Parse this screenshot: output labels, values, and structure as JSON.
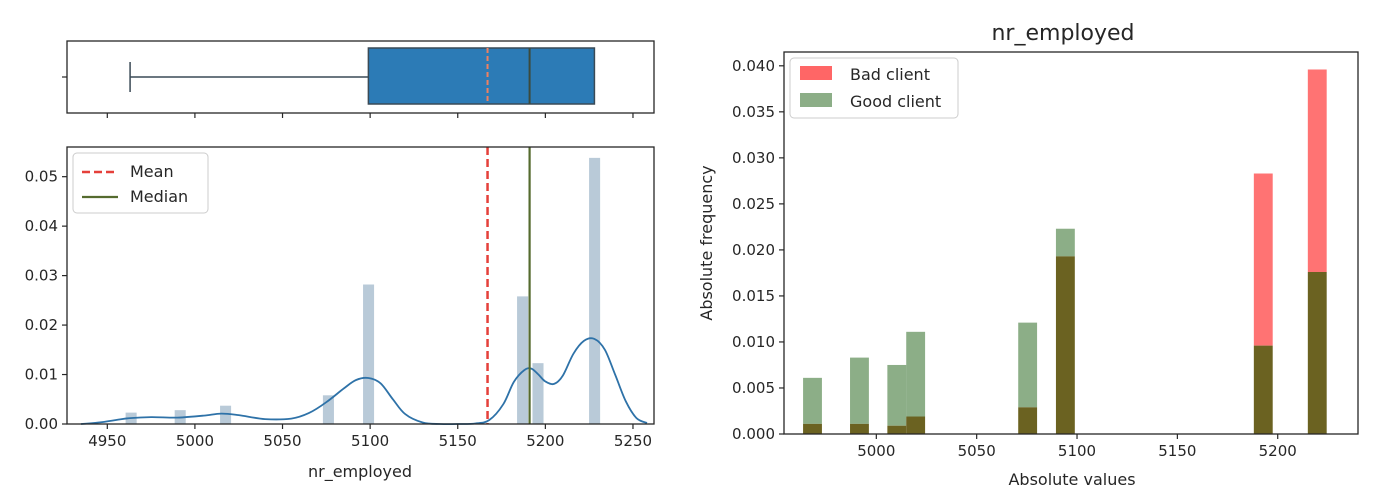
{
  "chart_data": [
    {
      "type": "box",
      "panel": "left-top",
      "min": 4963,
      "q1": 5099,
      "median": 5191,
      "mean": 5167,
      "q3": 5228,
      "max": 5228,
      "xlim": [
        4927,
        5262
      ],
      "colors": {
        "box": "#2c7bb6",
        "edge": "#3a4a56",
        "mean": "#f08060",
        "median": "#3c4a3c"
      }
    },
    {
      "type": "bar",
      "panel": "left-bottom",
      "xlabel": "nr_employed",
      "ylabel": "",
      "xlim": [
        4927,
        5262
      ],
      "ylim": [
        0,
        0.056
      ],
      "xticks": [
        "4950",
        "5000",
        "5050",
        "5100",
        "5150",
        "5200",
        "5250"
      ],
      "yticks": [
        "0.00",
        "0.01",
        "0.02",
        "0.03",
        "0.04",
        "0.05"
      ],
      "bar_width": 6.3,
      "bars": [
        {
          "x": 4963.6,
          "y": 0.0023
        },
        {
          "x": 4991.6,
          "y": 0.0028
        },
        {
          "x": 5017.5,
          "y": 0.0037
        },
        {
          "x": 5076.2,
          "y": 0.0058
        },
        {
          "x": 5099.1,
          "y": 0.0282
        },
        {
          "x": 5187.0,
          "y": 0.0258
        },
        {
          "x": 5195.8,
          "y": 0.0123
        },
        {
          "x": 5228.1,
          "y": 0.0538
        }
      ],
      "kde": {
        "x": [
          4935,
          4945,
          4955,
          4963,
          4975,
          4990,
          5005,
          5015,
          5025,
          5040,
          5055,
          5065,
          5075,
          5085,
          5092,
          5099,
          5106,
          5113,
          5120,
          5130,
          5140,
          5150,
          5160,
          5168,
          5176,
          5182,
          5188,
          5192,
          5196,
          5200,
          5205,
          5210,
          5216,
          5222,
          5228,
          5234,
          5240,
          5246,
          5252,
          5258
        ],
        "y": [
          0.0,
          0.0003,
          0.0008,
          0.0012,
          0.0014,
          0.0013,
          0.0017,
          0.0021,
          0.0018,
          0.001,
          0.0011,
          0.0022,
          0.0044,
          0.0072,
          0.0089,
          0.0093,
          0.0082,
          0.005,
          0.002,
          0.0003,
          0.0,
          0.0,
          0.0001,
          0.0008,
          0.004,
          0.0085,
          0.0109,
          0.0112,
          0.01,
          0.0086,
          0.0081,
          0.0098,
          0.0142,
          0.0168,
          0.0172,
          0.015,
          0.0098,
          0.0045,
          0.0012,
          0.0002
        ]
      },
      "mean": 5167,
      "median": 5191,
      "legend": {
        "placement": "upper-left",
        "entries": [
          "Mean",
          "Median"
        ]
      },
      "colors": {
        "bars": "#7f9fb8",
        "kde": "#2e72a8",
        "mean": "#e5403a",
        "median": "#556b2f"
      }
    },
    {
      "type": "bar",
      "panel": "right",
      "title": "nr_employed",
      "xlabel": "Absolute values",
      "ylabel": "Absolute frequency",
      "xlim": [
        4954,
        5240
      ],
      "ylim": [
        0,
        0.0415
      ],
      "xticks": [
        "5000",
        "5050",
        "5100",
        "5150",
        "5200"
      ],
      "yticks": [
        "0.000",
        "0.005",
        "0.010",
        "0.015",
        "0.020",
        "0.025",
        "0.030",
        "0.035",
        "0.040"
      ],
      "bar_width": 9.4,
      "categories": [
        "4968.2",
        "4991.6",
        "5010.2",
        "5019.6",
        "5075.4",
        "5094.2",
        "5192.8",
        "5219.7"
      ],
      "series": [
        {
          "name": "Bad client",
          "values": [
            0.0011,
            0.0011,
            0.0009,
            0.0019,
            0.0029,
            0.0193,
            0.0283,
            0.0396
          ]
        },
        {
          "name": "Good client",
          "values": [
            0.0061,
            0.0083,
            0.0075,
            0.0111,
            0.0121,
            0.0223,
            0.0096,
            0.0176
          ]
        }
      ],
      "legend": {
        "placement": "upper-left"
      },
      "colors": {
        "bad": "#ff0000",
        "good": "#2e6b24",
        "overlap": "#6b6221"
      }
    }
  ]
}
